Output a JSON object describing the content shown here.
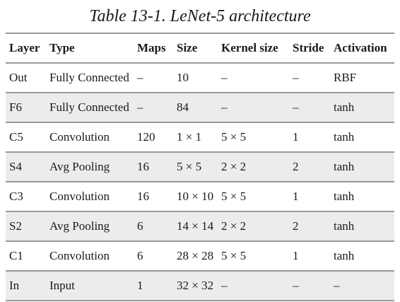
{
  "caption": "Table 13-1. LeNet-5 architecture",
  "table": {
    "headers": [
      "Layer",
      "Type",
      "Maps",
      "Size",
      "Kernel size",
      "Stride",
      "Activation"
    ],
    "rows": [
      {
        "layer": "Out",
        "type": "Fully Connected",
        "maps": "–",
        "size": "10",
        "kernel": "–",
        "stride": "–",
        "activation": "RBF"
      },
      {
        "layer": "F6",
        "type": "Fully Connected",
        "maps": "–",
        "size": "84",
        "kernel": "–",
        "stride": "–",
        "activation": "tanh"
      },
      {
        "layer": "C5",
        "type": "Convolution",
        "maps": "120",
        "size": "1 × 1",
        "kernel": "5 × 5",
        "stride": "1",
        "activation": "tanh"
      },
      {
        "layer": "S4",
        "type": "Avg Pooling",
        "maps": "16",
        "size": "5 × 5",
        "kernel": "2 × 2",
        "stride": "2",
        "activation": "tanh"
      },
      {
        "layer": "C3",
        "type": "Convolution",
        "maps": "16",
        "size": "10 × 10",
        "kernel": "5 × 5",
        "stride": "1",
        "activation": "tanh"
      },
      {
        "layer": "S2",
        "type": "Avg Pooling",
        "maps": "6",
        "size": "14 × 14",
        "kernel": "2 × 2",
        "stride": "2",
        "activation": "tanh"
      },
      {
        "layer": "C1",
        "type": "Convolution",
        "maps": "6",
        "size": "28 × 28",
        "kernel": "5 × 5",
        "stride": "1",
        "activation": "tanh"
      },
      {
        "layer": "In",
        "type": "Input",
        "maps": "1",
        "size": "32 × 32",
        "kernel": "–",
        "stride": "–",
        "activation": "–"
      }
    ]
  }
}
